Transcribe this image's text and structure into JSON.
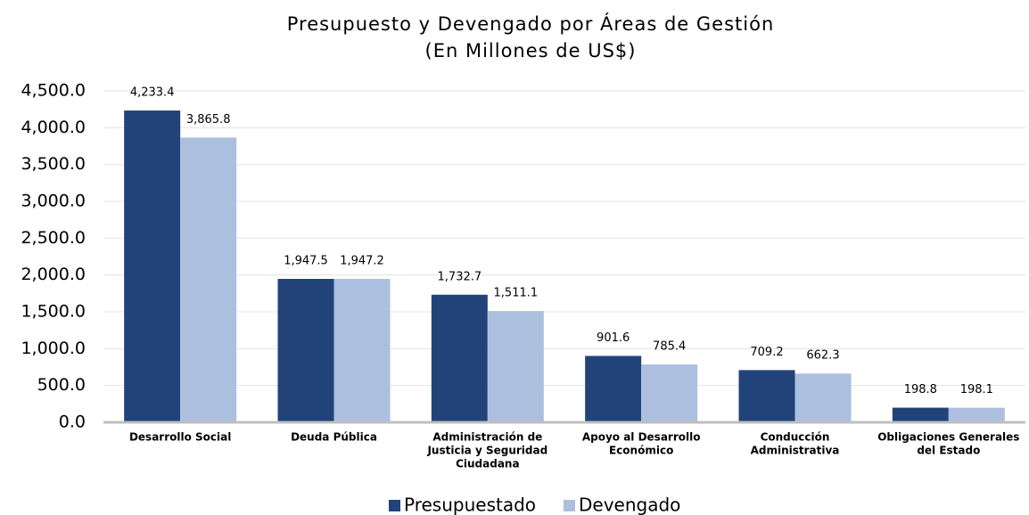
{
  "chart_data": {
    "type": "bar",
    "title": "Presupuesto y Devengado por Áreas de Gestión",
    "subtitle": "(En Millones de US$)",
    "categories": [
      [
        "Desarrollo Social"
      ],
      [
        "Deuda Pública"
      ],
      [
        "Administración de",
        "Justicia y Seguridad",
        "Ciudadana"
      ],
      [
        "Apoyo al Desarrollo",
        "Económico"
      ],
      [
        "Conducción",
        "Administrativa"
      ],
      [
        "Obligaciones Generales",
        "del Estado"
      ]
    ],
    "series": [
      {
        "name": "Presupuestado",
        "color": "#22427a",
        "values": [
          4233.4,
          1947.5,
          1732.7,
          901.6,
          709.2,
          198.8
        ],
        "value_labels": [
          "4,233.4",
          "1,947.5",
          "1,732.7",
          "901.6",
          "709.2",
          "198.8"
        ]
      },
      {
        "name": "Devengado",
        "color": "#adbfdf",
        "values": [
          3865.8,
          1947.2,
          1511.1,
          785.4,
          662.3,
          198.1
        ],
        "value_labels": [
          "3,865.8",
          "1,947.2",
          "1,511.1",
          "785.4",
          "662.3",
          "198.1"
        ]
      }
    ],
    "ylim": [
      0,
      4500
    ],
    "yticks": [
      {
        "value": 0,
        "label": "0.0"
      },
      {
        "value": 500,
        "label": "500.0"
      },
      {
        "value": 1000,
        "label": "1,000.0"
      },
      {
        "value": 1500,
        "label": "1,500.0"
      },
      {
        "value": 2000,
        "label": "2,000.0"
      },
      {
        "value": 2500,
        "label": "2,500.0"
      },
      {
        "value": 3000,
        "label": "3,000.0"
      },
      {
        "value": 3500,
        "label": "3,500.0"
      },
      {
        "value": 4000,
        "label": "4,000.0"
      },
      {
        "value": 4500,
        "label": "4,500.0"
      }
    ],
    "grid": true,
    "legend": "bottom"
  }
}
